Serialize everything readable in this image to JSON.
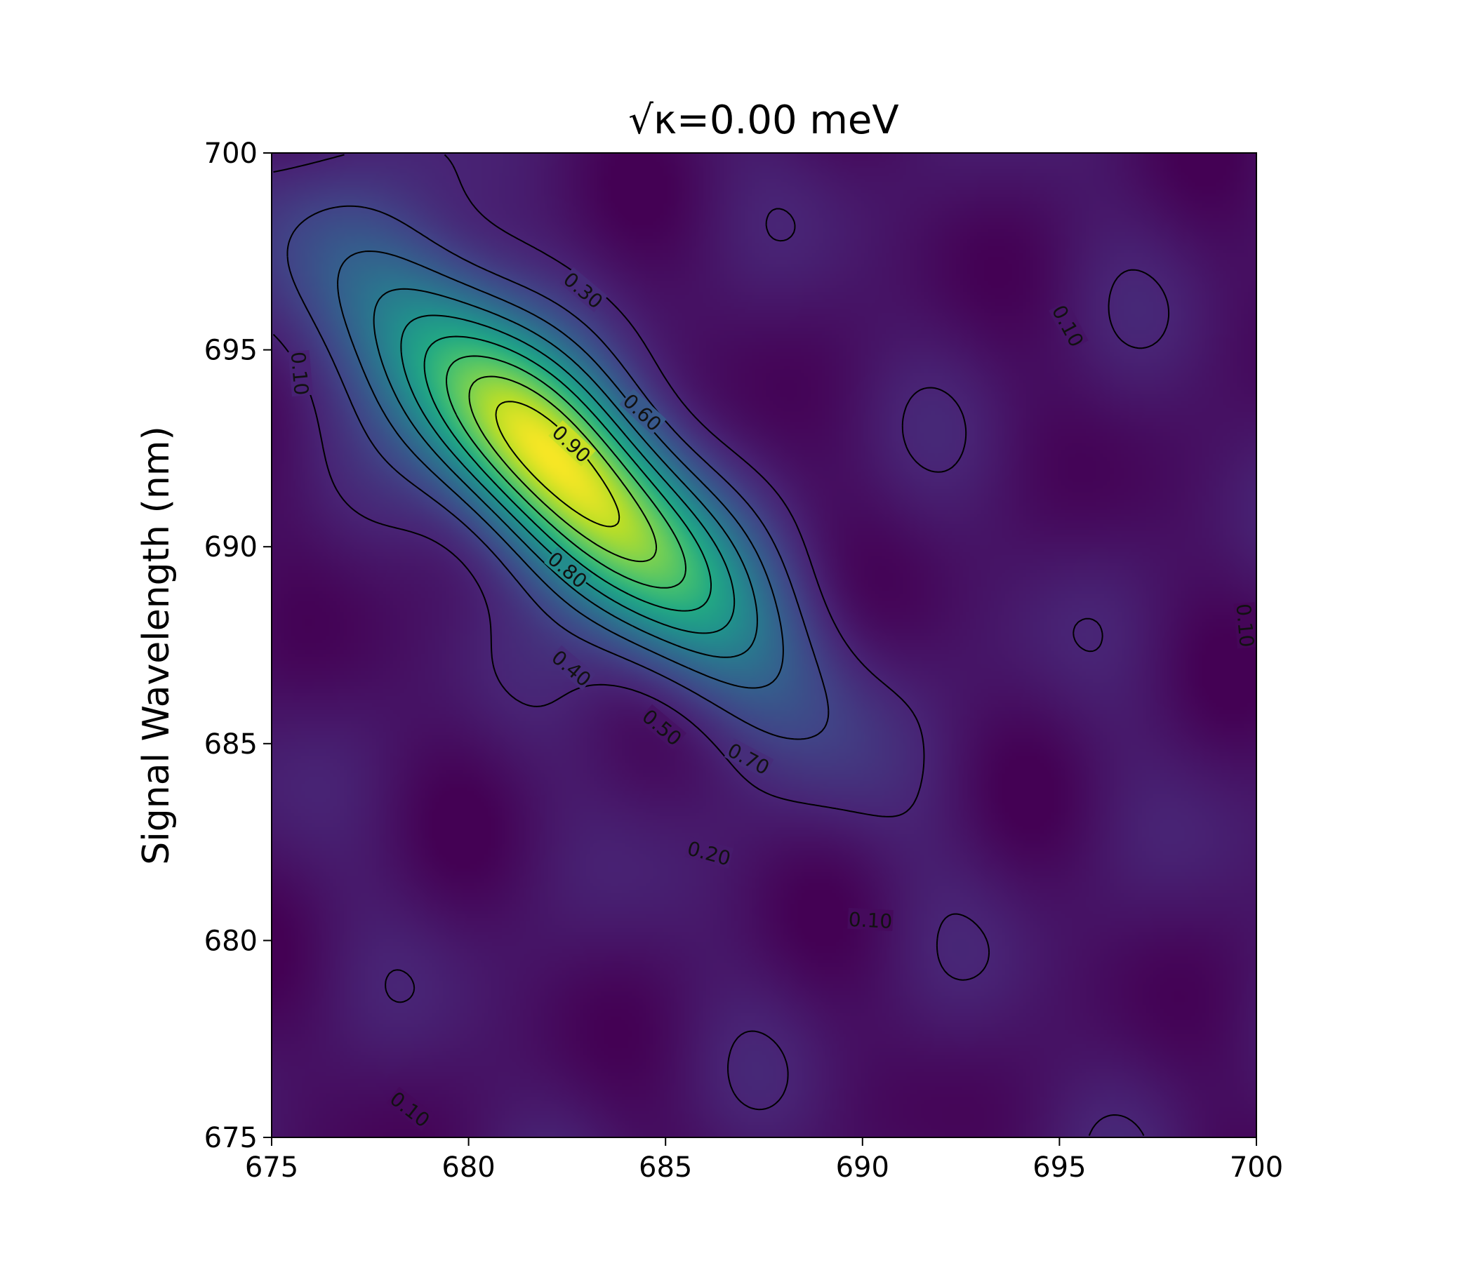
{
  "chart_data": {
    "type": "heatmap",
    "title": "√κ=0.00 meV",
    "xlabel": "",
    "ylabel": "Signal Wavelength (nm)",
    "xlim": [
      675,
      700
    ],
    "ylim": [
      675,
      700
    ],
    "x_ticks": [
      "675",
      "680",
      "685",
      "690",
      "695",
      "700"
    ],
    "y_ticks": [
      "675",
      "680",
      "685",
      "690",
      "695",
      "700"
    ],
    "x_tick_values": [
      675,
      680,
      685,
      690,
      695,
      700
    ],
    "y_tick_values": [
      675,
      680,
      685,
      690,
      695,
      700
    ],
    "colormap": "viridis",
    "colors": {
      "low": "#440154",
      "mid": "#21918c",
      "high": "#fde725",
      "contour_line": "#000000"
    },
    "peak": {
      "x": 682.3,
      "y": 692.0,
      "value": 0.96
    },
    "contour_levels": [
      0.1,
      0.2,
      0.3,
      0.4,
      0.5,
      0.6,
      0.7,
      0.8,
      0.9
    ],
    "contour_labels": [
      {
        "text": "0.30",
        "x": 682.9,
        "y": 696.5,
        "angle": 40
      },
      {
        "text": "0.60",
        "x": 684.4,
        "y": 693.4,
        "angle": 43
      },
      {
        "text": "0.90",
        "x": 682.6,
        "y": 692.6,
        "angle": 43
      },
      {
        "text": "0.80",
        "x": 682.5,
        "y": 689.4,
        "angle": 40
      },
      {
        "text": "0.40",
        "x": 682.6,
        "y": 686.9,
        "angle": 40
      },
      {
        "text": "0.50",
        "x": 684.9,
        "y": 685.4,
        "angle": 40
      },
      {
        "text": "0.70",
        "x": 687.1,
        "y": 684.6,
        "angle": 28
      },
      {
        "text": "0.20",
        "x": 686.1,
        "y": 682.2,
        "angle": 15
      },
      {
        "text": "0.10",
        "x": 690.2,
        "y": 680.5,
        "angle": 3
      },
      {
        "text": "0.10",
        "x": 678.5,
        "y": 675.7,
        "angle": 38
      },
      {
        "text": "0.10",
        "x": 675.7,
        "y": 694.4,
        "angle": 85
      },
      {
        "text": "0.10",
        "x": 695.2,
        "y": 695.6,
        "angle": 62
      },
      {
        "text": "0.10",
        "x": 699.7,
        "y": 688.0,
        "angle": 85
      }
    ]
  }
}
